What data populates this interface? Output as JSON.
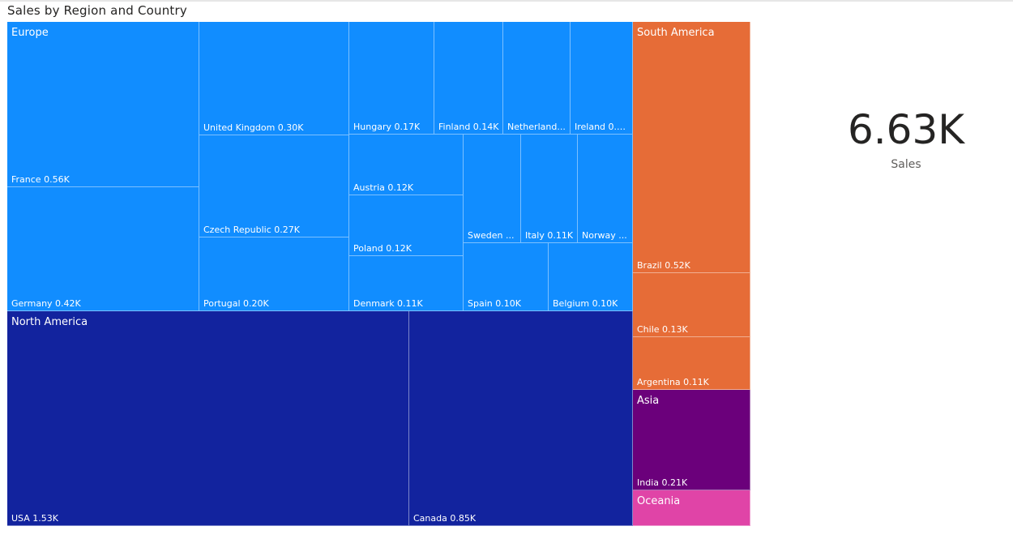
{
  "title": "Sales by Region and Country",
  "card": {
    "value": "6.63K",
    "label": "Sales"
  },
  "chart_data": {
    "type": "treemap",
    "title": "Sales by Region and Country",
    "measure": "Sales",
    "total": 6630,
    "groups": [
      {
        "name": "Europe",
        "color": "#118dff",
        "items": [
          {
            "name": "France",
            "value": 560,
            "label": "France 0.56K"
          },
          {
            "name": "Germany",
            "value": 420,
            "label": "Germany 0.42K"
          },
          {
            "name": "United Kingdom",
            "value": 300,
            "label": "United Kingdom 0.30K"
          },
          {
            "name": "Czech Republic",
            "value": 270,
            "label": "Czech Republic 0.27K"
          },
          {
            "name": "Portugal",
            "value": 200,
            "label": "Portugal 0.20K"
          },
          {
            "name": "Hungary",
            "value": 170,
            "label": "Hungary 0.17K"
          },
          {
            "name": "Finland",
            "value": 140,
            "label": "Finland 0.14K"
          },
          {
            "name": "Netherlands",
            "value": 140,
            "label": "Netherland..."
          },
          {
            "name": "Ireland",
            "value": 130,
            "label": "Ireland 0.1..."
          },
          {
            "name": "Austria",
            "value": 120,
            "label": "Austria 0.12K"
          },
          {
            "name": "Poland",
            "value": 120,
            "label": "Poland 0.12K"
          },
          {
            "name": "Denmark",
            "value": 110,
            "label": "Denmark 0.11K"
          },
          {
            "name": "Sweden",
            "value": 110,
            "label": "Sweden ..."
          },
          {
            "name": "Italy",
            "value": 110,
            "label": "Italy 0.11K"
          },
          {
            "name": "Norway",
            "value": 110,
            "label": "Norway ..."
          },
          {
            "name": "Spain",
            "value": 100,
            "label": "Spain 0.10K"
          },
          {
            "name": "Belgium",
            "value": 100,
            "label": "Belgium 0.10K"
          }
        ]
      },
      {
        "name": "North America",
        "color": "#12239e",
        "items": [
          {
            "name": "USA",
            "value": 1530,
            "label": "USA 1.53K"
          },
          {
            "name": "Canada",
            "value": 850,
            "label": "Canada 0.85K"
          }
        ]
      },
      {
        "name": "South America",
        "color": "#e66c37",
        "items": [
          {
            "name": "Brazil",
            "value": 520,
            "label": "Brazil 0.52K"
          },
          {
            "name": "Chile",
            "value": 130,
            "label": "Chile 0.13K"
          },
          {
            "name": "Argentina",
            "value": 110,
            "label": "Argentina 0.11K"
          }
        ]
      },
      {
        "name": "Asia",
        "color": "#6b007b",
        "items": [
          {
            "name": "India",
            "value": 210,
            "label": "India 0.21K"
          }
        ]
      },
      {
        "name": "Oceania",
        "color": "#e044a7",
        "items": []
      }
    ]
  }
}
